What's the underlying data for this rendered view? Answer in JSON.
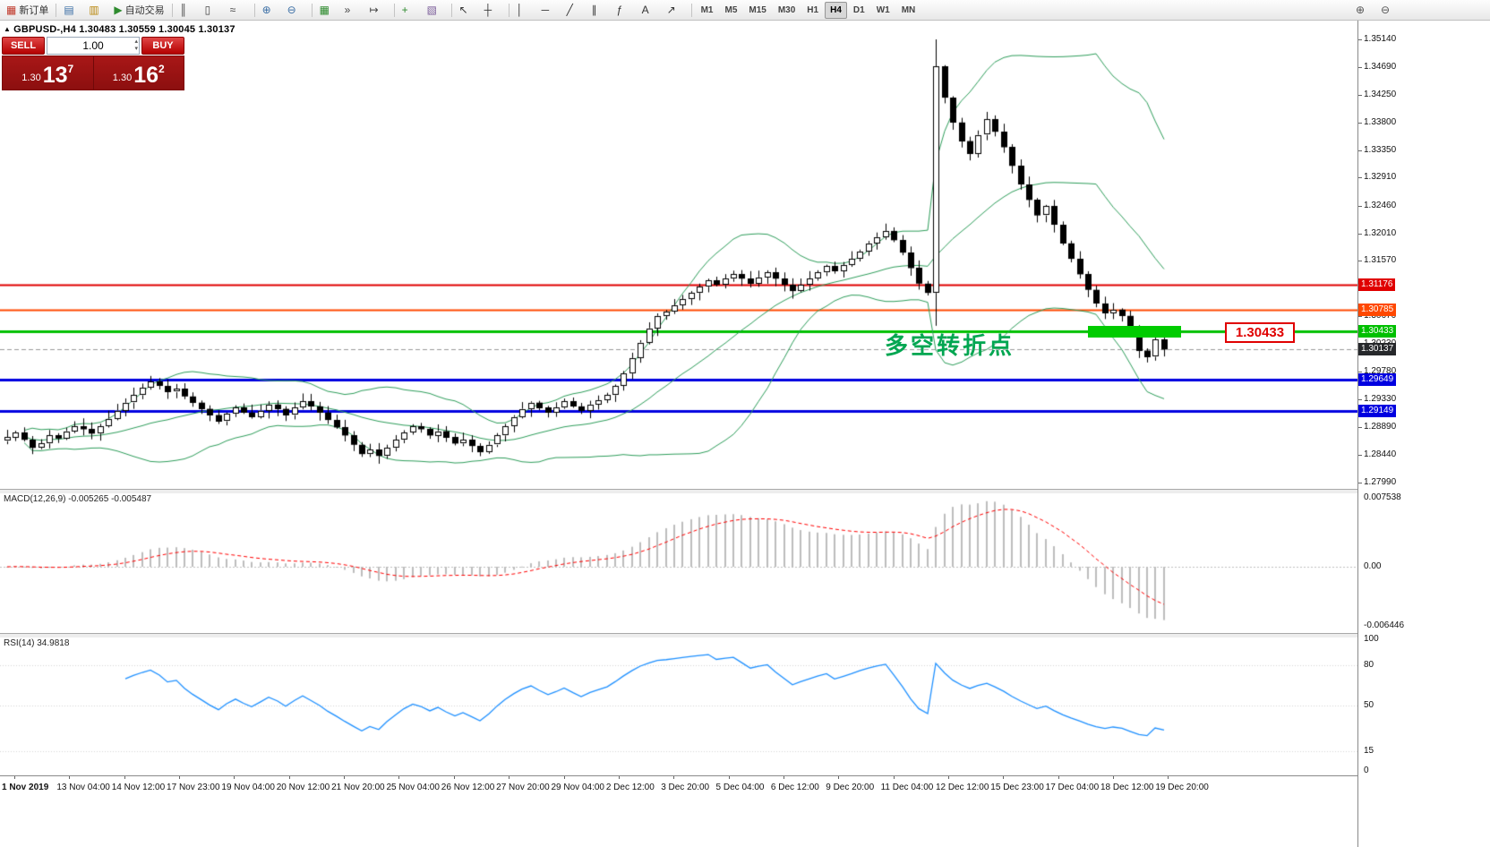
{
  "toolbar": {
    "items": [
      {
        "btn": "new-order-button",
        "icon": "new-order-icon",
        "glyph": "▦",
        "color": "#c0392b",
        "label": "新订单"
      },
      {
        "sep": true
      },
      {
        "btn": "new-chart-button",
        "icon": "new-chart-icon",
        "glyph": "▤",
        "color": "#3a6ea5"
      },
      {
        "btn": "profiles-button",
        "icon": "profiles-icon",
        "glyph": "▥",
        "color": "#b8860b"
      },
      {
        "btn": "auto-trading-button",
        "icon": "auto-trading-icon",
        "glyph": "▶",
        "color": "#2e8b2e",
        "label": "自动交易"
      },
      {
        "sep": true
      },
      {
        "btn": "bar-chart-button",
        "icon": "bar-chart-icon",
        "glyph": "║",
        "color": "#444444"
      },
      {
        "btn": "candlestick-chart-button",
        "icon": "candlestick-chart-icon",
        "glyph": "▯",
        "color": "#444444"
      },
      {
        "btn": "line-chart-button",
        "icon": "line-chart-icon",
        "glyph": "≈",
        "color": "#444444"
      },
      {
        "sep": true
      },
      {
        "btn": "zoom-in-button",
        "icon": "zoom-in-icon",
        "glyph": "⊕",
        "color": "#3a6ea5"
      },
      {
        "btn": "zoom-out-button",
        "icon": "zoom-out-icon",
        "glyph": "⊖",
        "color": "#3a6ea5"
      },
      {
        "sep": true
      },
      {
        "btn": "tile-windows-button",
        "icon": "tile-windows-icon",
        "glyph": "▦",
        "color": "#2e8b2e"
      },
      {
        "btn": "auto-scroll-button",
        "icon": "auto-scroll-icon",
        "glyph": "»",
        "color": "#444444"
      },
      {
        "btn": "chart-shift-button",
        "icon": "chart-shift-icon",
        "glyph": "↦",
        "color": "#444444"
      },
      {
        "sep": true
      },
      {
        "btn": "indicators-button",
        "icon": "indicators-icon",
        "glyph": "+",
        "color": "#2e8b2e"
      },
      {
        "btn": "templates-button",
        "icon": "templates-icon",
        "glyph": "▧",
        "color": "#7a5c99"
      },
      {
        "sep": true
      },
      {
        "btn": "cursor-button",
        "icon": "cursor-icon",
        "glyph": "↖",
        "color": "#333333"
      },
      {
        "btn": "crosshair-button",
        "icon": "crosshair-icon",
        "glyph": "┼",
        "color": "#333333"
      },
      {
        "sep": true
      },
      {
        "btn": "vertical-line-button",
        "icon": "vertical-line-icon",
        "glyph": "│",
        "color": "#333333"
      },
      {
        "btn": "horizontal-line-button",
        "icon": "horizontal-line-icon",
        "glyph": "─",
        "color": "#333333"
      },
      {
        "btn": "trendline-button",
        "icon": "trendline-icon",
        "glyph": "╱",
        "color": "#333333"
      },
      {
        "btn": "channel-button",
        "icon": "channel-icon",
        "glyph": "∥",
        "color": "#333333"
      },
      {
        "btn": "fibonacci-button",
        "icon": "fibonacci-icon",
        "glyph": "ƒ",
        "color": "#333333"
      },
      {
        "btn": "text-button",
        "icon": "text-icon",
        "glyph": "A",
        "color": "#333333"
      },
      {
        "btn": "arrows-button",
        "icon": "arrows-icon",
        "glyph": "↗",
        "color": "#333333"
      },
      {
        "sep": true
      }
    ],
    "timeframes": [
      "M1",
      "M5",
      "M15",
      "M30",
      "H1",
      "H4",
      "D1",
      "W1",
      "MN"
    ],
    "active_timeframe": "H4",
    "right_items": [
      {
        "btn": "magnifier-plus-button",
        "icon": "magnifier-plus-icon",
        "glyph": "⊕",
        "color": "#555555"
      },
      {
        "btn": "magnifier-minus-button",
        "icon": "magnifier-minus-icon",
        "glyph": "⊖",
        "color": "#555555"
      }
    ]
  },
  "symbol_info": {
    "marker": "▲",
    "text": "GBPUSD-,H4  1.30483 1.30559 1.30045 1.30137"
  },
  "trade_panel": {
    "sell_label": "SELL",
    "buy_label": "BUY",
    "volume": "1.00",
    "sell_price_small": "1.30",
    "sell_price_big": "13",
    "sell_sup": "7",
    "buy_price_small": "1.30",
    "buy_price_big": "16",
    "buy_sup": "2"
  },
  "annotation": {
    "text": "多空转折点",
    "color": "#00A651"
  },
  "price_label_box": "1.30433",
  "hlines": [
    {
      "price": 1.31176,
      "color": "#E00000",
      "width": 2,
      "badge": "1.31176"
    },
    {
      "price": 1.30785,
      "color": "#FF4800",
      "width": 2,
      "badge": "1.30785"
    },
    {
      "price": 1.30433,
      "color": "#00C000",
      "width": 3,
      "badge": "1.30433"
    },
    {
      "price": 1.29649,
      "color": "#0000E0",
      "width": 3,
      "badge": "1.29649"
    },
    {
      "price": 1.29149,
      "color": "#0000E0",
      "width": 3,
      "badge": "1.29149"
    }
  ],
  "current_price": {
    "price": 1.30137,
    "badge": "1.30137",
    "color": "#26282b"
  },
  "axis": {
    "price_ticks": [
      "1.35140",
      "1.34690",
      "1.34250",
      "1.33800",
      "1.33350",
      "1.32910",
      "1.32460",
      "1.32010",
      "1.31570",
      "1.31120",
      "1.30670",
      "1.30230",
      "1.29780",
      "1.29330",
      "1.28890",
      "1.28440",
      "1.27990"
    ]
  },
  "time_axis": [
    "1 Nov 2019",
    "13 Nov 04:00",
    "14 Nov 12:00",
    "17 Nov 23:00",
    "19 Nov 04:00",
    "20 Nov 12:00",
    "21 Nov 20:00",
    "25 Nov 04:00",
    "26 Nov 12:00",
    "27 Nov 20:00",
    "29 Nov 04:00",
    "2 Dec 12:00",
    "3 Dec 20:00",
    "5 Dec 04:00",
    "6 Dec 12:00",
    "9 Dec 20:00",
    "11 Dec 04:00",
    "12 Dec 12:00",
    "15 Dec 23:00",
    "17 Dec 04:00",
    "18 Dec 12:00",
    "19 Dec 20:00"
  ],
  "macd": {
    "title": "MACD(12,26,9)",
    "values": "-0.005265 -0.005487",
    "scale": {
      "top": "0.007538",
      "mid": "0.00",
      "bottom": "-0.006446"
    }
  },
  "rsi": {
    "title": "RSI(14)",
    "value": "34.9818",
    "scale": [
      "100",
      "80",
      "50",
      "15",
      "0"
    ]
  },
  "chart_data": {
    "type": "candlestick",
    "symbol": "GBPUSD",
    "period": "H4",
    "title": "GBPUSD-,H4",
    "ohlc_display": {
      "open": 1.30483,
      "high": 1.30559,
      "low": 1.30045,
      "close": 1.30137
    },
    "price_axis_range": [
      1.27889,
      1.35458
    ],
    "closes": [
      1.2872,
      1.288,
      1.2868,
      1.2855,
      1.2862,
      1.2875,
      1.287,
      1.2882,
      1.289,
      1.2885,
      1.2878,
      1.289,
      1.2902,
      1.2915,
      1.2928,
      1.294,
      1.2952,
      1.2962,
      1.2955,
      1.2945,
      1.295,
      1.2938,
      1.2928,
      1.2918,
      1.2908,
      1.2898,
      1.291,
      1.292,
      1.2912,
      1.2905,
      1.2915,
      1.2925,
      1.2918,
      1.2908,
      1.292,
      1.293,
      1.2922,
      1.2912,
      1.29,
      1.2888,
      1.2875,
      1.286,
      1.2845,
      1.2852,
      1.2842,
      1.2855,
      1.2868,
      1.288,
      1.289,
      1.2885,
      1.2875,
      1.2882,
      1.2872,
      1.2862,
      1.2868,
      1.2858,
      1.2848,
      1.286,
      1.2875,
      1.289,
      1.2905,
      1.2918,
      1.2928,
      1.292,
      1.2912,
      1.292,
      1.293,
      1.2922,
      1.2915,
      1.2925,
      1.2932,
      1.294,
      1.2955,
      1.2975,
      1.3,
      1.3025,
      1.3048,
      1.3068,
      1.3075,
      1.3085,
      1.3095,
      1.3105,
      1.3115,
      1.3125,
      1.3118,
      1.3128,
      1.3135,
      1.3128,
      1.312,
      1.313,
      1.3138,
      1.3128,
      1.3118,
      1.3108,
      1.3118,
      1.3128,
      1.3138,
      1.3148,
      1.314,
      1.315,
      1.316,
      1.3172,
      1.3185,
      1.3195,
      1.3205,
      1.319,
      1.317,
      1.3145,
      1.312,
      1.3105,
      1.347,
      1.342,
      1.338,
      1.335,
      1.333,
      1.336,
      1.3385,
      1.3365,
      1.334,
      1.331,
      1.328,
      1.3255,
      1.323,
      1.3245,
      1.3215,
      1.3185,
      1.316,
      1.3135,
      1.311,
      1.3088,
      1.3072,
      1.3078,
      1.3068,
      1.3042,
      1.3012,
      1.3002,
      1.303,
      1.30137
    ],
    "spike_candle": {
      "index": 110,
      "open": 1.3105,
      "high": 1.3514,
      "low": 1.3052,
      "close": 1.347
    },
    "indicators": {
      "bollinger": {
        "period": 20,
        "deviation": 2,
        "color": "#2E9E5B"
      },
      "macd": {
        "fast": 12,
        "slow": 26,
        "signal": 9,
        "current": [
          -0.005265,
          -0.005487
        ]
      },
      "rsi": {
        "period": 14,
        "current": 34.9818
      }
    }
  }
}
